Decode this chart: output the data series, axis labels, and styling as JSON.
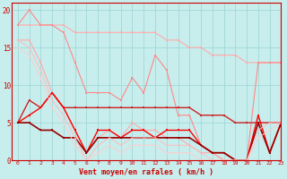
{
  "xlabel": "Vent moyen/en rafales ( km/h )",
  "xlim": [
    -0.5,
    23
  ],
  "ylim": [
    0,
    21
  ],
  "yticks": [
    0,
    5,
    10,
    15,
    20
  ],
  "xticks": [
    0,
    1,
    2,
    3,
    4,
    5,
    6,
    7,
    8,
    9,
    10,
    11,
    12,
    13,
    14,
    15,
    16,
    17,
    18,
    19,
    20,
    21,
    22,
    23
  ],
  "background_color": "#c8eded",
  "grid_color": "#a0d8d8",
  "series": [
    {
      "x": [
        0,
        1,
        2,
        3,
        4,
        5,
        6,
        7,
        8,
        9,
        10,
        11,
        12,
        13,
        14,
        15,
        16,
        17,
        18,
        19,
        20,
        21,
        22,
        23
      ],
      "y": [
        18,
        18,
        18,
        18,
        18,
        17,
        17,
        17,
        17,
        17,
        17,
        17,
        17,
        16,
        16,
        15,
        15,
        14,
        14,
        14,
        13,
        13,
        13,
        13
      ],
      "color": "#ffaaaa",
      "linewidth": 0.8,
      "marker": "s",
      "markersize": 1.5
    },
    {
      "x": [
        0,
        1,
        2,
        3,
        4,
        5,
        6,
        7,
        8,
        9,
        10,
        11,
        12,
        13,
        14,
        15,
        16,
        17,
        18,
        19,
        20,
        21,
        22,
        23
      ],
      "y": [
        18,
        20,
        18,
        18,
        17,
        13,
        9,
        9,
        9,
        8,
        11,
        9,
        14,
        12,
        6,
        6,
        2,
        1,
        0,
        0,
        0,
        13,
        13,
        13
      ],
      "color": "#ff8888",
      "linewidth": 0.8,
      "marker": "s",
      "markersize": 1.5
    },
    {
      "x": [
        0,
        1,
        2,
        3,
        4,
        5,
        6,
        7,
        8,
        9,
        10,
        11,
        12,
        13,
        14,
        15,
        16,
        17,
        18,
        19,
        20,
        21,
        22,
        23
      ],
      "y": [
        16,
        16,
        13,
        9,
        7,
        4,
        1,
        3,
        4,
        3,
        5,
        4,
        4,
        3,
        3,
        2,
        1,
        1,
        0,
        0,
        0,
        5,
        5,
        5
      ],
      "color": "#ffaaaa",
      "linewidth": 0.8,
      "marker": "s",
      "markersize": 1.5
    },
    {
      "x": [
        0,
        1,
        2,
        3,
        4,
        5,
        6,
        7,
        8,
        9,
        10,
        11,
        12,
        13,
        14,
        15,
        16,
        17,
        18,
        19,
        20,
        21,
        22,
        23
      ],
      "y": [
        5,
        8,
        7,
        9,
        7,
        7,
        7,
        7,
        7,
        7,
        7,
        7,
        7,
        7,
        7,
        7,
        6,
        6,
        6,
        5,
        5,
        5,
        5,
        5
      ],
      "color": "#cc2222",
      "linewidth": 1.0,
      "marker": "s",
      "markersize": 1.5
    },
    {
      "x": [
        0,
        1,
        2,
        3,
        4,
        5,
        6,
        7,
        8,
        9,
        10,
        11,
        12,
        13,
        14,
        15,
        16,
        17,
        18,
        19,
        20,
        21,
        22,
        23
      ],
      "y": [
        5,
        6,
        7,
        9,
        7,
        4,
        1,
        4,
        4,
        3,
        4,
        4,
        3,
        4,
        4,
        4,
        2,
        1,
        1,
        0,
        0,
        6,
        1,
        5
      ],
      "color": "#ff0000",
      "linewidth": 1.0,
      "marker": "s",
      "markersize": 1.5
    },
    {
      "x": [
        0,
        1,
        2,
        3,
        4,
        5,
        6,
        7,
        8,
        9,
        10,
        11,
        12,
        13,
        14,
        15,
        16,
        17,
        18,
        19,
        20,
        21,
        22,
        23
      ],
      "y": [
        5,
        5,
        4,
        4,
        3,
        3,
        1,
        3,
        3,
        3,
        3,
        3,
        3,
        3,
        3,
        3,
        2,
        1,
        1,
        0,
        0,
        5,
        1,
        5
      ],
      "color": "#990000",
      "linewidth": 1.2,
      "marker": "s",
      "markersize": 1.5
    },
    {
      "x": [
        0,
        1,
        2,
        3,
        4,
        5,
        6,
        7,
        8,
        9,
        10,
        11,
        12,
        13,
        14,
        15,
        16,
        17,
        18,
        19,
        20,
        21,
        22,
        23
      ],
      "y": [
        16,
        15,
        12,
        8,
        6,
        3,
        0,
        2,
        3,
        2,
        3,
        3,
        3,
        2,
        2,
        2,
        1,
        0,
        0,
        0,
        0,
        4,
        5,
        5
      ],
      "color": "#ffbbbb",
      "linewidth": 0.7,
      "marker": "s",
      "markersize": 1.2
    },
    {
      "x": [
        0,
        1,
        2,
        3,
        4,
        5,
        6,
        7,
        8,
        9,
        10,
        11,
        12,
        13,
        14,
        15,
        16,
        17,
        18,
        19,
        20,
        21,
        22,
        23
      ],
      "y": [
        15,
        14,
        11,
        7,
        5,
        2,
        0,
        1,
        2,
        1,
        2,
        2,
        2,
        1,
        1,
        1,
        0,
        0,
        0,
        0,
        0,
        3,
        4,
        5
      ],
      "color": "#ffcccc",
      "linewidth": 0.7,
      "marker": "s",
      "markersize": 1.2
    }
  ]
}
